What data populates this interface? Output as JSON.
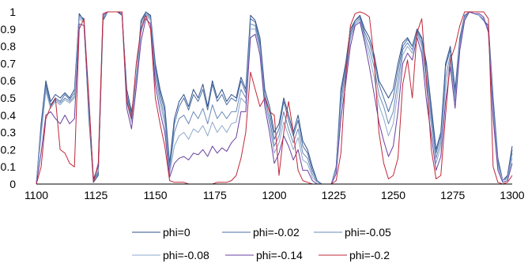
{
  "chart_data": {
    "type": "line",
    "xlim": [
      1100,
      1300
    ],
    "ylim": [
      0,
      1
    ],
    "x_ticks": [
      1100,
      1125,
      1150,
      1175,
      1200,
      1225,
      1250,
      1275,
      1300
    ],
    "y_ticks": [
      0,
      0.1,
      0.2,
      0.3,
      0.4,
      0.5,
      0.6,
      0.7,
      0.8,
      0.9,
      1
    ],
    "y_tick_labels": [
      "0",
      "0.1",
      "0.2",
      "0.3",
      "0.4",
      "0.5",
      "0.6",
      "0.7",
      "0.8",
      "0.9",
      "1"
    ],
    "grid": false,
    "legend_position": "bottom",
    "x": [
      1100,
      1102,
      1104,
      1106,
      1108,
      1110,
      1112,
      1114,
      1116,
      1118,
      1120,
      1122,
      1124,
      1126,
      1128,
      1130,
      1132,
      1134,
      1136,
      1138,
      1140,
      1142,
      1144,
      1146,
      1148,
      1150,
      1152,
      1154,
      1156,
      1158,
      1160,
      1162,
      1164,
      1166,
      1168,
      1170,
      1172,
      1174,
      1176,
      1178,
      1180,
      1182,
      1184,
      1186,
      1188,
      1190,
      1192,
      1194,
      1196,
      1198,
      1200,
      1202,
      1204,
      1206,
      1208,
      1210,
      1212,
      1214,
      1216,
      1218,
      1220,
      1222,
      1224,
      1226,
      1228,
      1230,
      1232,
      1234,
      1236,
      1238,
      1240,
      1242,
      1244,
      1246,
      1248,
      1250,
      1252,
      1254,
      1256,
      1258,
      1260,
      1262,
      1264,
      1266,
      1268,
      1270,
      1272,
      1274,
      1276,
      1278,
      1280,
      1282,
      1284,
      1286,
      1288,
      1290,
      1292,
      1294,
      1296,
      1298,
      1300
    ],
    "series": [
      {
        "name": "phi=0",
        "color": "#2f4f87",
        "values": [
          0,
          0.35,
          0.6,
          0.48,
          0.52,
          0.5,
          0.53,
          0.5,
          0.55,
          0.99,
          0.95,
          0.4,
          0.01,
          0.05,
          0.95,
          1,
          1,
          1,
          0.98,
          0.55,
          0.42,
          0.6,
          0.95,
          1,
          0.98,
          0.7,
          0.55,
          0.45,
          0.12,
          0.38,
          0.48,
          0.52,
          0.45,
          0.55,
          0.5,
          0.58,
          0.45,
          0.6,
          0.5,
          0.55,
          0.48,
          0.52,
          0.5,
          0.62,
          0.55,
          0.98,
          0.95,
          0.85,
          0.55,
          0.45,
          0.3,
          0.35,
          0.5,
          0.4,
          0.3,
          0.4,
          0.25,
          0.2,
          0.1,
          0.02,
          0,
          0,
          0,
          0.1,
          0.55,
          0.7,
          0.9,
          0.95,
          0.98,
          0.9,
          0.85,
          0.75,
          0.6,
          0.55,
          0.5,
          0.55,
          0.7,
          0.82,
          0.85,
          0.8,
          0.9,
          0.85,
          0.7,
          0.45,
          0.2,
          0.3,
          0.7,
          0.8,
          0.55,
          0.85,
          0.98,
          1,
          0.99,
          0.98,
          0.95,
          0.92,
          0.5,
          0.15,
          0.02,
          0.05,
          0.22
        ]
      },
      {
        "name": "phi=-0.02",
        "color": "#4a6fa5",
        "values": [
          0,
          0.33,
          0.58,
          0.46,
          0.5,
          0.48,
          0.52,
          0.49,
          0.53,
          0.98,
          0.96,
          0.42,
          0.02,
          0.06,
          0.96,
          1,
          1,
          1,
          0.99,
          0.52,
          0.4,
          0.62,
          0.93,
          1,
          0.97,
          0.68,
          0.53,
          0.42,
          0.1,
          0.35,
          0.45,
          0.5,
          0.43,
          0.52,
          0.48,
          0.55,
          0.43,
          0.58,
          0.48,
          0.52,
          0.46,
          0.5,
          0.48,
          0.6,
          0.53,
          0.96,
          0.94,
          0.82,
          0.52,
          0.42,
          0.26,
          0.32,
          0.48,
          0.37,
          0.28,
          0.37,
          0.22,
          0.18,
          0.08,
          0.02,
          0,
          0,
          0,
          0.1,
          0.52,
          0.68,
          0.88,
          0.95,
          0.97,
          0.88,
          0.82,
          0.72,
          0.58,
          0.5,
          0.42,
          0.5,
          0.66,
          0.8,
          0.84,
          0.8,
          0.89,
          0.84,
          0.68,
          0.42,
          0.18,
          0.28,
          0.68,
          0.78,
          0.53,
          0.84,
          0.98,
          1,
          0.99,
          0.98,
          0.95,
          0.9,
          0.48,
          0.14,
          0.02,
          0.04,
          0.2
        ]
      },
      {
        "name": "phi=-0.05",
        "color": "#6a8ab8",
        "values": [
          0,
          0.3,
          0.56,
          0.45,
          0.49,
          0.47,
          0.5,
          0.48,
          0.51,
          0.97,
          0.95,
          0.44,
          0.02,
          0.07,
          0.96,
          1,
          1,
          1,
          0.99,
          0.5,
          0.38,
          0.62,
          0.9,
          0.99,
          0.96,
          0.65,
          0.5,
          0.38,
          0.08,
          0.3,
          0.38,
          0.4,
          0.35,
          0.42,
          0.38,
          0.44,
          0.35,
          0.46,
          0.38,
          0.42,
          0.38,
          0.42,
          0.42,
          0.55,
          0.5,
          0.93,
          0.92,
          0.8,
          0.5,
          0.38,
          0.22,
          0.28,
          0.42,
          0.32,
          0.24,
          0.32,
          0.18,
          0.15,
          0.06,
          0.01,
          0,
          0,
          0,
          0.09,
          0.48,
          0.65,
          0.86,
          0.94,
          0.96,
          0.86,
          0.78,
          0.68,
          0.52,
          0.45,
          0.35,
          0.42,
          0.6,
          0.78,
          0.82,
          0.78,
          0.88,
          0.82,
          0.62,
          0.38,
          0.15,
          0.25,
          0.62,
          0.75,
          0.5,
          0.82,
          0.97,
          1,
          0.99,
          0.98,
          0.96,
          0.9,
          0.45,
          0.12,
          0.02,
          0.04,
          0.18
        ]
      },
      {
        "name": "phi=-0.08",
        "color": "#8ea8cc",
        "values": [
          0,
          0.28,
          0.54,
          0.44,
          0.48,
          0.46,
          0.49,
          0.47,
          0.5,
          0.96,
          0.94,
          0.46,
          0.03,
          0.08,
          0.97,
          1,
          1,
          1,
          0.99,
          0.48,
          0.36,
          0.6,
          0.88,
          0.98,
          0.95,
          0.62,
          0.47,
          0.35,
          0.06,
          0.22,
          0.28,
          0.3,
          0.26,
          0.32,
          0.3,
          0.34,
          0.28,
          0.36,
          0.3,
          0.34,
          0.3,
          0.35,
          0.36,
          0.5,
          0.47,
          0.9,
          0.9,
          0.78,
          0.48,
          0.35,
          0.18,
          0.24,
          0.36,
          0.28,
          0.2,
          0.27,
          0.14,
          0.12,
          0.04,
          0.01,
          0,
          0,
          0,
          0.08,
          0.44,
          0.62,
          0.84,
          0.93,
          0.95,
          0.84,
          0.74,
          0.62,
          0.46,
          0.38,
          0.28,
          0.35,
          0.54,
          0.75,
          0.8,
          0.76,
          0.87,
          0.8,
          0.56,
          0.34,
          0.12,
          0.22,
          0.56,
          0.72,
          0.48,
          0.8,
          0.96,
          1,
          0.99,
          0.98,
          0.96,
          0.89,
          0.42,
          0.1,
          0.02,
          0.03,
          0.15
        ]
      },
      {
        "name": "phi=-0.14",
        "color": "#6a3fa0",
        "values": [
          0,
          0.18,
          0.4,
          0.42,
          0.38,
          0.35,
          0.4,
          0.35,
          0.38,
          0.93,
          0.92,
          0.5,
          0.03,
          0.1,
          0.98,
          1,
          1,
          1,
          0.99,
          0.44,
          0.32,
          0.56,
          0.83,
          0.96,
          0.93,
          0.58,
          0.42,
          0.3,
          0.04,
          0.12,
          0.15,
          0.16,
          0.14,
          0.18,
          0.17,
          0.2,
          0.16,
          0.22,
          0.18,
          0.21,
          0.19,
          0.24,
          0.27,
          0.42,
          0.42,
          0.85,
          0.87,
          0.75,
          0.45,
          0.3,
          0.12,
          0.18,
          0.28,
          0.22,
          0.14,
          0.2,
          0.08,
          0.08,
          0.02,
          0,
          0,
          0,
          0,
          0.06,
          0.38,
          0.58,
          0.8,
          0.92,
          0.94,
          0.82,
          0.68,
          0.52,
          0.36,
          0.25,
          0.16,
          0.22,
          0.42,
          0.7,
          0.76,
          0.72,
          0.85,
          0.76,
          0.48,
          0.28,
          0.08,
          0.16,
          0.48,
          0.68,
          0.44,
          0.78,
          0.95,
          1,
          0.99,
          0.99,
          0.97,
          0.88,
          0.38,
          0.08,
          0.01,
          0.02,
          0.12
        ]
      },
      {
        "name": "phi=-0.2",
        "color": "#c0283a",
        "values": [
          0,
          0.1,
          0.38,
          0.45,
          0.5,
          0.2,
          0.18,
          0.12,
          0.1,
          0.9,
          0.96,
          0.52,
          0.01,
          0.12,
          0.99,
          1,
          1,
          1,
          1,
          0.48,
          0.38,
          0.7,
          0.9,
          0.98,
          0.9,
          0.5,
          0.35,
          0.22,
          0.02,
          0.01,
          0.01,
          0.01,
          0,
          0,
          0,
          0,
          0,
          0,
          0.01,
          0.01,
          0.01,
          0.02,
          0.05,
          0.15,
          0.3,
          0.65,
          0.55,
          0.45,
          0.5,
          0.42,
          0.4,
          0.05,
          0.3,
          0.48,
          0.3,
          0.08,
          0.02,
          0.01,
          0,
          0,
          0,
          0,
          0,
          0.02,
          0.18,
          0.62,
          0.92,
          0.99,
          1,
          0.99,
          0.97,
          0.72,
          0.3,
          0.12,
          0.03,
          0.05,
          0.15,
          0.58,
          0.72,
          0.5,
          0.88,
          0.96,
          0.6,
          0.2,
          0.03,
          0.05,
          0.4,
          0.72,
          0.8,
          0.92,
          1,
          1,
          1,
          1,
          1,
          0.96,
          0.1,
          0.01,
          0,
          0.01,
          0.05
        ]
      }
    ]
  }
}
